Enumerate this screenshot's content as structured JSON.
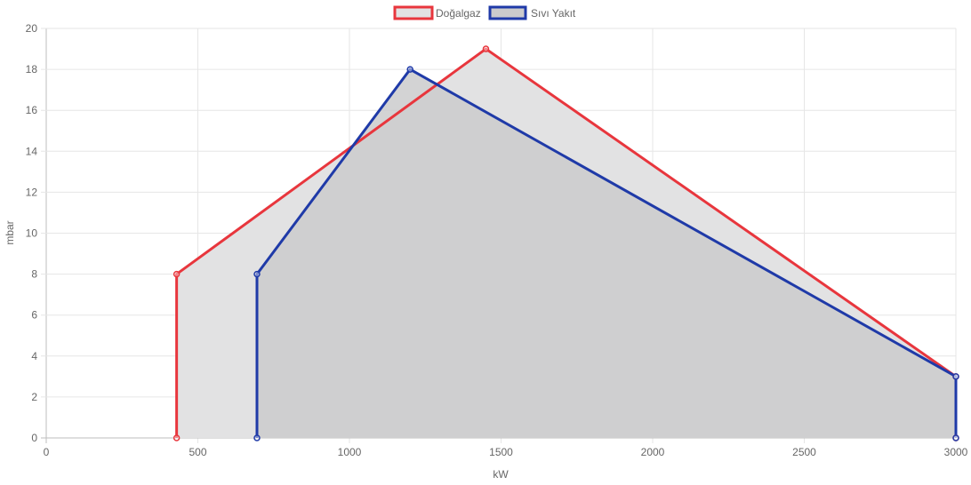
{
  "chart_data": {
    "type": "area",
    "xlabel": "kW",
    "ylabel": "mbar",
    "xlim": [
      0,
      3000
    ],
    "ylim": [
      0,
      20
    ],
    "x_ticks": [
      0,
      500,
      1000,
      1500,
      2000,
      2500,
      3000
    ],
    "y_ticks": [
      0,
      2,
      4,
      6,
      8,
      10,
      12,
      14,
      16,
      18,
      20
    ],
    "grid": true,
    "legend_position": "top-center",
    "series": [
      {
        "name": "Doğalgaz",
        "color": "#e8363d",
        "fill": "#e2e2e3",
        "points": [
          [
            430,
            0
          ],
          [
            430,
            8
          ],
          [
            1450,
            19
          ],
          [
            3000,
            3
          ],
          [
            3000,
            0
          ]
        ]
      },
      {
        "name": "Sıvı Yakıt",
        "color": "#1f3aa8",
        "fill": "#cbcbcc",
        "points": [
          [
            695,
            0
          ],
          [
            695,
            8
          ],
          [
            1200,
            18
          ],
          [
            3000,
            3
          ],
          [
            3000,
            0
          ]
        ]
      }
    ]
  }
}
